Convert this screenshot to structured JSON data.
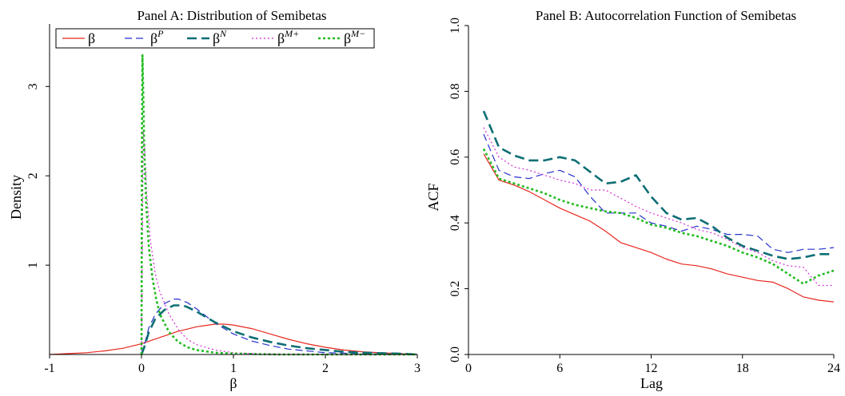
{
  "chart_data": [
    {
      "type": "line",
      "title": "Panel A: Distribution of Semibetas",
      "xlabel": "β",
      "ylabel": "Density",
      "xlim": [
        -1,
        3
      ],
      "ylim": [
        0,
        3.7
      ],
      "xticks": [
        "-1",
        "0",
        "1",
        "2",
        "3"
      ],
      "yticks": [
        "1",
        "2",
        "3"
      ],
      "xtick_values": [
        -1,
        0,
        1,
        2,
        3
      ],
      "ytick_values": [
        1,
        2,
        3
      ],
      "grid": false,
      "legend": {
        "placement": "top",
        "entries": [
          {
            "base": "β",
            "sup": ""
          },
          {
            "base": "β",
            "sup": "P"
          },
          {
            "base": "β",
            "sup": "N"
          },
          {
            "base": "β",
            "sup": "M+"
          },
          {
            "base": "β",
            "sup": "M−"
          }
        ]
      },
      "series": [
        {
          "key": "beta",
          "color": "#e8281e",
          "dash": "",
          "width": 1.2,
          "x": [
            -1,
            -0.8,
            -0.6,
            -0.4,
            -0.2,
            0,
            0.2,
            0.4,
            0.6,
            0.8,
            0.9,
            1.0,
            1.2,
            1.4,
            1.6,
            1.8,
            2.0,
            2.2,
            2.4,
            2.6,
            2.8,
            3.0
          ],
          "y": [
            0.0,
            0.01,
            0.02,
            0.04,
            0.07,
            0.12,
            0.19,
            0.26,
            0.31,
            0.34,
            0.34,
            0.33,
            0.29,
            0.23,
            0.17,
            0.12,
            0.08,
            0.05,
            0.03,
            0.02,
            0.01,
            0.0
          ]
        },
        {
          "key": "betaP",
          "color": "#2832cc",
          "dash": "9,5",
          "width": 1.2,
          "x": [
            0,
            0.03,
            0.08,
            0.15,
            0.25,
            0.35,
            0.4,
            0.5,
            0.6,
            0.7,
            0.8,
            1.0,
            1.2,
            1.4,
            1.6,
            1.8,
            2.0,
            2.4,
            3.0
          ],
          "y": [
            0.0,
            0.1,
            0.3,
            0.45,
            0.57,
            0.62,
            0.62,
            0.58,
            0.51,
            0.43,
            0.35,
            0.23,
            0.15,
            0.1,
            0.06,
            0.04,
            0.02,
            0.01,
            0.0
          ]
        },
        {
          "key": "betaN",
          "color": "#0d6e74",
          "dash": "12,6",
          "width": 2.6,
          "x": [
            0,
            0.03,
            0.08,
            0.15,
            0.25,
            0.35,
            0.45,
            0.5,
            0.6,
            0.7,
            0.8,
            1.0,
            1.2,
            1.4,
            1.6,
            1.8,
            2.0,
            2.2,
            2.4,
            2.8,
            3.0
          ],
          "y": [
            0.0,
            0.08,
            0.25,
            0.4,
            0.5,
            0.55,
            0.55,
            0.53,
            0.48,
            0.42,
            0.36,
            0.26,
            0.19,
            0.14,
            0.1,
            0.07,
            0.05,
            0.03,
            0.02,
            0.01,
            0.0
          ]
        },
        {
          "key": "betaMplus",
          "color": "#d42ed4",
          "dash": "2,3",
          "width": 1.2,
          "x": [
            0,
            0.01,
            0.02,
            0.04,
            0.06,
            0.1,
            0.15,
            0.2,
            0.3,
            0.4,
            0.5,
            0.6,
            0.8,
            1.0,
            1.2,
            1.5,
            2.0,
            3.0
          ],
          "y": [
            0.0,
            1.4,
            2.5,
            2.2,
            1.75,
            1.25,
            0.9,
            0.7,
            0.45,
            0.28,
            0.17,
            0.11,
            0.05,
            0.02,
            0.01,
            0.0,
            0.0,
            0.0
          ]
        },
        {
          "key": "betaMminus",
          "color": "#22bb22",
          "dash": "3,3",
          "width": 2.6,
          "x": [
            0,
            0.005,
            0.01,
            0.02,
            0.03,
            0.05,
            0.08,
            0.12,
            0.16,
            0.2,
            0.3,
            0.4,
            0.5,
            0.6,
            0.8,
            1.0,
            1.5,
            3.0
          ],
          "y": [
            0.0,
            2.5,
            3.35,
            2.9,
            2.3,
            1.7,
            1.2,
            0.85,
            0.62,
            0.45,
            0.25,
            0.14,
            0.08,
            0.05,
            0.02,
            0.01,
            0.0,
            0.0
          ]
        }
      ]
    },
    {
      "type": "line",
      "title": "Panel B: Autocorrelation Function of Semibetas",
      "xlabel": "Lag",
      "ylabel": "ACF",
      "xlim": [
        0,
        24
      ],
      "ylim": [
        0,
        1
      ],
      "xticks": [
        "0",
        "6",
        "12",
        "18",
        "24"
      ],
      "yticks": [
        "0.0",
        "0.2",
        "0.4",
        "0.6",
        "0.8",
        "1.0"
      ],
      "xtick_values": [
        0,
        6,
        12,
        18,
        24
      ],
      "ytick_values": [
        0.0,
        0.2,
        0.4,
        0.6,
        0.8,
        1.0
      ],
      "grid": false,
      "x": [
        1,
        2,
        3,
        4,
        5,
        6,
        7,
        8,
        9,
        10,
        11,
        12,
        13,
        14,
        15,
        16,
        17,
        18,
        19,
        20,
        21,
        22,
        23,
        24
      ],
      "series": [
        {
          "key": "beta",
          "color": "#e8281e",
          "dash": "",
          "width": 1.2,
          "values": [
            0.61,
            0.53,
            0.515,
            0.495,
            0.47,
            0.445,
            0.425,
            0.405,
            0.375,
            0.34,
            0.325,
            0.31,
            0.29,
            0.275,
            0.27,
            0.26,
            0.245,
            0.235,
            0.225,
            0.22,
            0.2,
            0.175,
            0.165,
            0.16
          ]
        },
        {
          "key": "betaP",
          "color": "#2832cc",
          "dash": "9,5",
          "width": 1.2,
          "values": [
            0.67,
            0.56,
            0.54,
            0.535,
            0.55,
            0.56,
            0.54,
            0.48,
            0.43,
            0.43,
            0.43,
            0.4,
            0.39,
            0.375,
            0.39,
            0.38,
            0.365,
            0.365,
            0.36,
            0.32,
            0.31,
            0.32,
            0.32,
            0.325
          ]
        },
        {
          "key": "betaN",
          "color": "#0d6e74",
          "dash": "12,6",
          "width": 2.6,
          "values": [
            0.74,
            0.63,
            0.605,
            0.59,
            0.59,
            0.6,
            0.59,
            0.555,
            0.52,
            0.525,
            0.545,
            0.48,
            0.43,
            0.41,
            0.415,
            0.39,
            0.355,
            0.33,
            0.315,
            0.3,
            0.29,
            0.295,
            0.305,
            0.305
          ]
        },
        {
          "key": "betaMplus",
          "color": "#d42ed4",
          "dash": "2,3",
          "width": 1.2,
          "values": [
            0.69,
            0.6,
            0.57,
            0.56,
            0.545,
            0.53,
            0.52,
            0.5,
            0.5,
            0.475,
            0.45,
            0.43,
            0.415,
            0.4,
            0.38,
            0.37,
            0.35,
            0.325,
            0.31,
            0.285,
            0.27,
            0.265,
            0.21,
            0.21
          ]
        },
        {
          "key": "betaMminus",
          "color": "#22bb22",
          "dash": "3,3",
          "width": 2.6,
          "values": [
            0.625,
            0.535,
            0.52,
            0.505,
            0.49,
            0.47,
            0.455,
            0.445,
            0.435,
            0.43,
            0.415,
            0.395,
            0.385,
            0.37,
            0.36,
            0.345,
            0.33,
            0.31,
            0.295,
            0.275,
            0.245,
            0.215,
            0.24,
            0.255
          ]
        }
      ]
    }
  ]
}
